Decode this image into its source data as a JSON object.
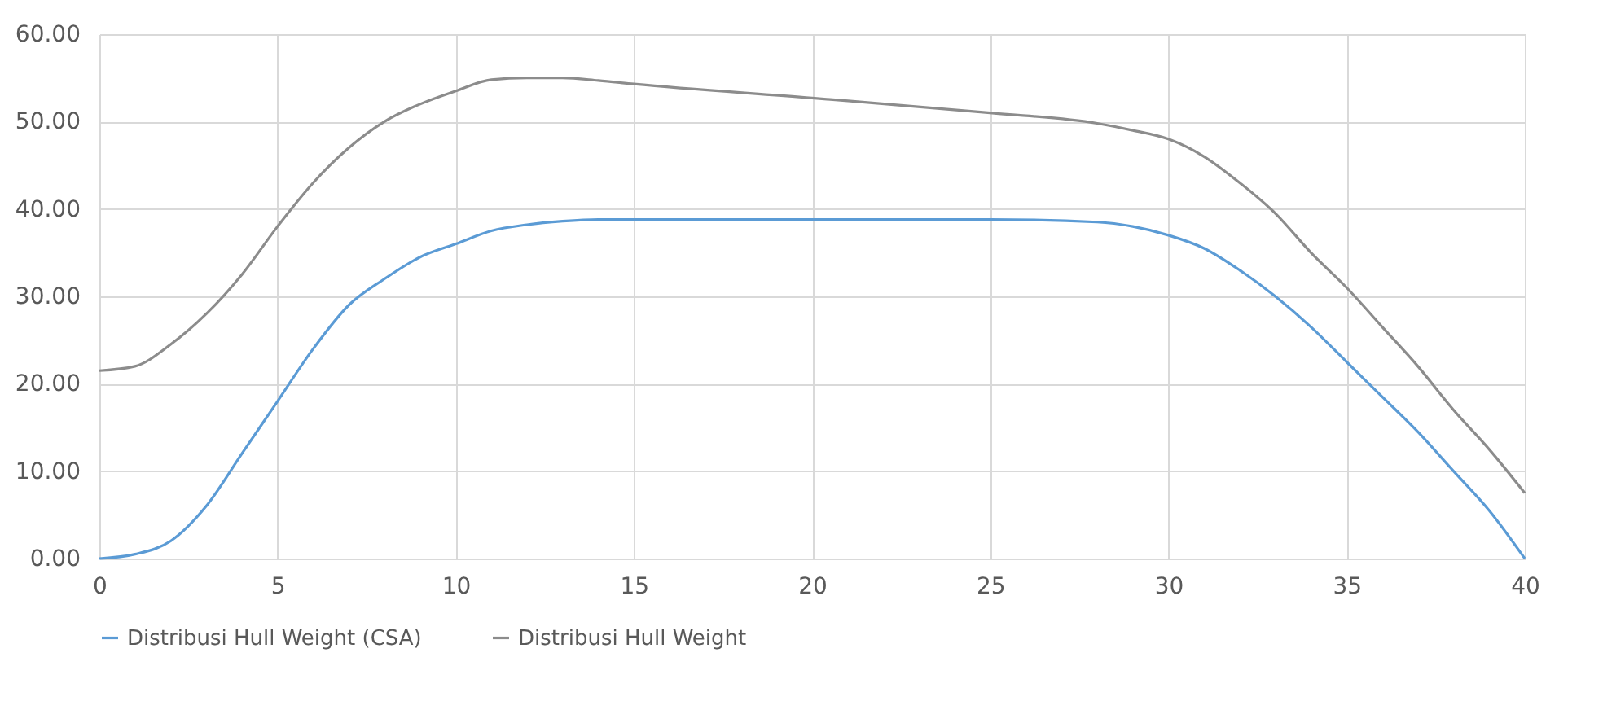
{
  "chart_data": {
    "type": "line",
    "x": [
      0,
      1,
      2,
      3,
      4,
      5,
      6,
      7,
      8,
      9,
      10,
      11,
      12,
      13,
      14,
      15,
      20,
      25,
      28,
      29,
      30,
      31,
      32,
      33,
      34,
      35,
      36,
      37,
      38,
      39,
      40
    ],
    "series": [
      {
        "name": "Distribusi Hull Weight (CSA)",
        "color": "#5b9bd5",
        "values": [
          0,
          0.5,
          2,
          6,
          12,
          18,
          24,
          29,
          32,
          34.5,
          36,
          37.5,
          38.2,
          38.6,
          38.8,
          38.8,
          38.8,
          38.8,
          38.5,
          38,
          37,
          35.5,
          33,
          30,
          26.5,
          22.5,
          18.5,
          14.5,
          10,
          5.5,
          0
        ]
      },
      {
        "name": "Distribusi Hull Weight",
        "color": "#8c8c8c",
        "values": [
          21.5,
          22,
          24.5,
          28,
          32.5,
          38,
          43,
          47,
          50,
          52,
          53.5,
          54.8,
          55,
          55,
          54.7,
          54.3,
          52.7,
          51,
          49.8,
          49,
          48,
          46,
          43,
          39.5,
          35,
          31,
          26.5,
          22,
          17,
          12.5,
          7.5
        ]
      }
    ],
    "xlim": [
      0,
      40
    ],
    "xticks": [
      0,
      5,
      10,
      15,
      20,
      25,
      30,
      35,
      40
    ],
    "ylim": [
      0,
      60
    ],
    "yticks": [
      {
        "value": 0,
        "label": "0.00"
      },
      {
        "value": 10,
        "label": "10.00"
      },
      {
        "value": 20,
        "label": "20.00"
      },
      {
        "value": 30,
        "label": "30.00"
      },
      {
        "value": 40,
        "label": "40.00"
      },
      {
        "value": 50,
        "label": "50.00"
      },
      {
        "value": 60,
        "label": "60.00"
      }
    ],
    "grid": true,
    "legend": "bottom",
    "marker": "none",
    "line_style": "solid"
  }
}
